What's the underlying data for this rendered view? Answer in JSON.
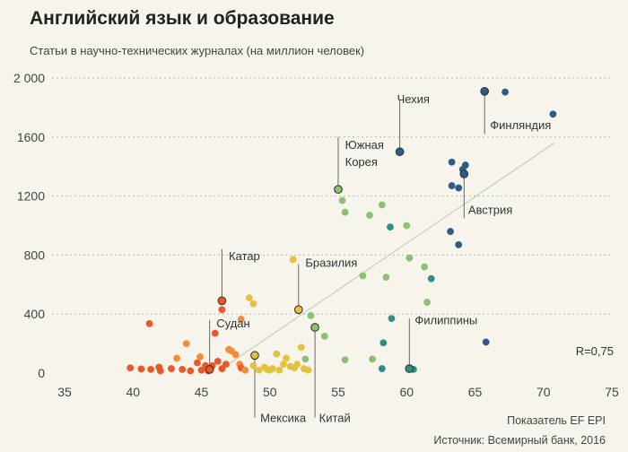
{
  "chart_data": {
    "type": "scatter",
    "title": "Английский язык и образование",
    "subtitle": "Статьи в научно-технических журналах (на миллион человек)",
    "xlabel": "Показатель EF EPI",
    "ylabel": "Статьи в научно-технических журналах (на миллион человек)",
    "source": "Источник: Всемирный банк, 2016",
    "r_label": "R=0,75",
    "xlim": [
      35,
      75
    ],
    "ylim": [
      0,
      2000
    ],
    "x_ticks": [
      35,
      40,
      45,
      50,
      55,
      60,
      65,
      70,
      75
    ],
    "x_tick_labels": [
      "35",
      "40",
      "45",
      "50",
      "55",
      "60",
      "65",
      "70",
      "75"
    ],
    "y_ticks": [
      0,
      400,
      800,
      1200,
      1600,
      2000
    ],
    "y_tick_labels": [
      "0",
      "400",
      "800",
      "1200",
      "1600",
      "2 000"
    ],
    "trendline": {
      "x": [
        46.5,
        70.8
      ],
      "y": [
        30,
        1560
      ]
    },
    "colors": {
      "red": "#e8582a",
      "orange": "#ef8d3a",
      "yellow": "#e4c23f",
      "green": "#8cc173",
      "teal": "#2f8f83",
      "blue": "#2f5b86"
    },
    "points": [
      {
        "x": 39.8,
        "y": 35,
        "c": "red"
      },
      {
        "x": 40.6,
        "y": 28,
        "c": "red"
      },
      {
        "x": 41.2,
        "y": 335,
        "c": "red"
      },
      {
        "x": 41.3,
        "y": 25,
        "c": "red"
      },
      {
        "x": 41.9,
        "y": 40,
        "c": "red"
      },
      {
        "x": 42.0,
        "y": 15,
        "c": "red"
      },
      {
        "x": 42.8,
        "y": 30,
        "c": "red"
      },
      {
        "x": 43.2,
        "y": 100,
        "c": "orange"
      },
      {
        "x": 43.6,
        "y": 25,
        "c": "red"
      },
      {
        "x": 43.9,
        "y": 200,
        "c": "orange"
      },
      {
        "x": 44.2,
        "y": 15,
        "c": "red"
      },
      {
        "x": 44.7,
        "y": 70,
        "c": "red"
      },
      {
        "x": 44.9,
        "y": 110,
        "c": "orange"
      },
      {
        "x": 45.0,
        "y": 20,
        "c": "red"
      },
      {
        "x": 45.3,
        "y": 50,
        "c": "red"
      },
      {
        "x": 45.5,
        "y": 15,
        "c": "red"
      },
      {
        "x": 45.8,
        "y": 50,
        "c": "red"
      },
      {
        "x": 46.0,
        "y": 270,
        "c": "red"
      },
      {
        "x": 46.2,
        "y": 80,
        "c": "red"
      },
      {
        "x": 46.5,
        "y": 430,
        "c": "red"
      },
      {
        "x": 46.5,
        "y": 30,
        "c": "red"
      },
      {
        "x": 46.8,
        "y": 60,
        "c": "red"
      },
      {
        "x": 47.0,
        "y": 160,
        "c": "orange"
      },
      {
        "x": 47.2,
        "y": 150,
        "c": "orange"
      },
      {
        "x": 47.5,
        "y": 125,
        "c": "orange"
      },
      {
        "x": 47.8,
        "y": 60,
        "c": "orange"
      },
      {
        "x": 47.9,
        "y": 35,
        "c": "red"
      },
      {
        "x": 47.9,
        "y": 365,
        "c": "orange"
      },
      {
        "x": 48.2,
        "y": 20,
        "c": "orange"
      },
      {
        "x": 48.5,
        "y": 510,
        "c": "yellow"
      },
      {
        "x": 48.8,
        "y": 470,
        "c": "yellow"
      },
      {
        "x": 48.8,
        "y": 50,
        "c": "yellow"
      },
      {
        "x": 49.2,
        "y": 20,
        "c": "yellow"
      },
      {
        "x": 49.6,
        "y": 40,
        "c": "yellow"
      },
      {
        "x": 49.8,
        "y": 25,
        "c": "yellow"
      },
      {
        "x": 50.0,
        "y": 20,
        "c": "yellow"
      },
      {
        "x": 50.2,
        "y": 30,
        "c": "yellow"
      },
      {
        "x": 50.5,
        "y": 130,
        "c": "yellow"
      },
      {
        "x": 50.7,
        "y": 20,
        "c": "yellow"
      },
      {
        "x": 51.0,
        "y": 60,
        "c": "yellow"
      },
      {
        "x": 51.2,
        "y": 100,
        "c": "yellow"
      },
      {
        "x": 51.5,
        "y": 45,
        "c": "yellow"
      },
      {
        "x": 51.7,
        "y": 770,
        "c": "yellow"
      },
      {
        "x": 51.8,
        "y": 35,
        "c": "yellow"
      },
      {
        "x": 52.0,
        "y": 60,
        "c": "yellow"
      },
      {
        "x": 52.3,
        "y": 175,
        "c": "yellow"
      },
      {
        "x": 52.5,
        "y": 30,
        "c": "yellow"
      },
      {
        "x": 52.8,
        "y": 20,
        "c": "yellow"
      },
      {
        "x": 52.6,
        "y": 95,
        "c": "green"
      },
      {
        "x": 53.0,
        "y": 390,
        "c": "green"
      },
      {
        "x": 54.0,
        "y": 250,
        "c": "green"
      },
      {
        "x": 55.3,
        "y": 1170,
        "c": "green"
      },
      {
        "x": 55.5,
        "y": 1090,
        "c": "green"
      },
      {
        "x": 55.5,
        "y": 90,
        "c": "green"
      },
      {
        "x": 56.8,
        "y": 660,
        "c": "green"
      },
      {
        "x": 57.3,
        "y": 1070,
        "c": "green"
      },
      {
        "x": 57.5,
        "y": 95,
        "c": "green"
      },
      {
        "x": 58.2,
        "y": 1140,
        "c": "green"
      },
      {
        "x": 58.5,
        "y": 650,
        "c": "green"
      },
      {
        "x": 58.8,
        "y": 990,
        "c": "teal"
      },
      {
        "x": 58.9,
        "y": 370,
        "c": "teal"
      },
      {
        "x": 58.3,
        "y": 205,
        "c": "teal"
      },
      {
        "x": 58.2,
        "y": 30,
        "c": "teal"
      },
      {
        "x": 60.0,
        "y": 1000,
        "c": "green"
      },
      {
        "x": 60.2,
        "y": 780,
        "c": "green"
      },
      {
        "x": 60.5,
        "y": 25,
        "c": "teal"
      },
      {
        "x": 61.3,
        "y": 720,
        "c": "green"
      },
      {
        "x": 61.5,
        "y": 480,
        "c": "green"
      },
      {
        "x": 61.8,
        "y": 640,
        "c": "teal"
      },
      {
        "x": 63.2,
        "y": 960,
        "c": "blue"
      },
      {
        "x": 63.3,
        "y": 1270,
        "c": "blue"
      },
      {
        "x": 63.3,
        "y": 1430,
        "c": "blue"
      },
      {
        "x": 63.8,
        "y": 870,
        "c": "blue"
      },
      {
        "x": 63.8,
        "y": 1255,
        "c": "blue"
      },
      {
        "x": 64.1,
        "y": 1380,
        "c": "blue"
      },
      {
        "x": 64.3,
        "y": 1410,
        "c": "blue"
      },
      {
        "x": 65.8,
        "y": 210,
        "c": "blue"
      },
      {
        "x": 67.2,
        "y": 1905,
        "c": "blue"
      },
      {
        "x": 70.7,
        "y": 1755,
        "c": "blue"
      }
    ],
    "labeled_points": [
      {
        "name": "Чехия",
        "x": 59.5,
        "y": 1500,
        "c": "blue",
        "label": [
          "Чехия"
        ],
        "anchor": "start",
        "lx": 59.3,
        "ly": 1830,
        "line": [
          [
            59.5,
            1500
          ],
          [
            59.5,
            1850
          ]
        ]
      },
      {
        "name": "Финляндия",
        "x": 65.7,
        "y": 1910,
        "c": "blue",
        "label": [
          "Финляндия"
        ],
        "anchor": "start",
        "lx": 66.1,
        "ly": 1655,
        "line": [
          [
            65.7,
            1910
          ],
          [
            65.7,
            1620
          ]
        ]
      },
      {
        "name": "Южная Корея",
        "x": 55.0,
        "y": 1245,
        "c": "green",
        "label": [
          "Южная",
          "Корея"
        ],
        "anchor": "start",
        "lx": 55.5,
        "ly": 1520,
        "line": [
          [
            55.0,
            1245
          ],
          [
            55.0,
            1600
          ]
        ]
      },
      {
        "name": "Австрия",
        "x": 64.2,
        "y": 1350,
        "c": "blue",
        "label": [
          "Австрия"
        ],
        "anchor": "start",
        "lx": 64.5,
        "ly": 1080,
        "line": [
          [
            64.2,
            1350
          ],
          [
            64.2,
            1050
          ]
        ]
      },
      {
        "name": "Катар",
        "x": 46.5,
        "y": 490,
        "c": "red",
        "label": [
          "Катар"
        ],
        "anchor": "start",
        "lx": 47.0,
        "ly": 765,
        "line": [
          [
            46.5,
            490
          ],
          [
            46.5,
            840
          ]
        ]
      },
      {
        "name": "Бразилия",
        "x": 52.1,
        "y": 430,
        "c": "yellow",
        "label": [
          "Бразилия"
        ],
        "anchor": "start",
        "lx": 52.6,
        "ly": 720,
        "line": [
          [
            52.1,
            430
          ],
          [
            52.1,
            740
          ]
        ]
      },
      {
        "name": "Судан",
        "x": 45.6,
        "y": 25,
        "c": "red",
        "label": [
          "Судан"
        ],
        "anchor": "start",
        "lx": 46.1,
        "ly": 310,
        "line": [
          [
            45.6,
            25
          ],
          [
            45.6,
            360
          ]
        ]
      },
      {
        "name": "Филиппины",
        "x": 60.2,
        "y": 30,
        "c": "teal",
        "label": [
          "Филиппины"
        ],
        "anchor": "start",
        "lx": 60.6,
        "ly": 330,
        "line": [
          [
            60.2,
            30
          ],
          [
            60.2,
            370
          ]
        ]
      },
      {
        "name": "Мексика",
        "x": 48.9,
        "y": 120,
        "c": "yellow",
        "label": [
          "Мексика"
        ],
        "anchor": "start",
        "lx": 49.3,
        "ly": -330,
        "line": [
          [
            48.9,
            120
          ],
          [
            48.9,
            -300
          ]
        ]
      },
      {
        "name": "Китай",
        "x": 53.3,
        "y": 310,
        "c": "green",
        "label": [
          "Китай"
        ],
        "anchor": "start",
        "lx": 53.6,
        "ly": -330,
        "line": [
          [
            53.3,
            310
          ],
          [
            53.3,
            -300
          ]
        ]
      }
    ]
  }
}
